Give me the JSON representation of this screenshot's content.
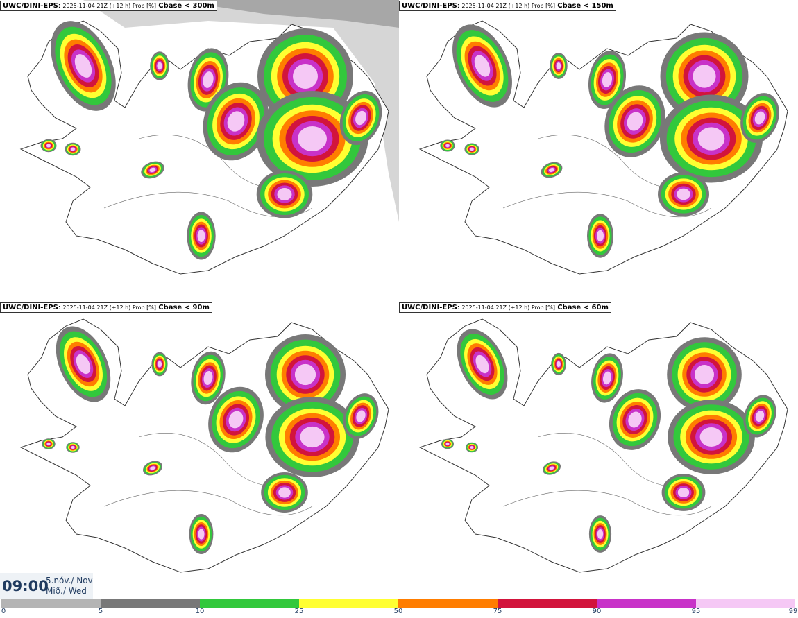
{
  "panels": [
    {
      "model": "UWC/DINI-EPS",
      "meta": "2025-11-04 21Z (+12 h) Prob [%]",
      "param": "Cbase < 300m"
    },
    {
      "model": "UWC/DINI-EPS",
      "meta": "2025-11-04 21Z (+12 h) Prob [%]",
      "param": "Cbase < 150m"
    },
    {
      "model": "UWC/DINI-EPS",
      "meta": "2025-11-04 21Z (+12 h) Prob [%]",
      "param": "Cbase < 90m"
    },
    {
      "model": "UWC/DINI-EPS",
      "meta": "2025-11-04 21Z (+12 h) Prob [%]",
      "param": "Cbase < 60m"
    }
  ],
  "time": {
    "clock": "09:00",
    "date_line": "5.nóv./ Nov",
    "day_line": "Mið./ Wed"
  },
  "legend": {
    "ticks": [
      "0",
      "5",
      "10",
      "25",
      "50",
      "75",
      "90",
      "95",
      "99"
    ],
    "colors": [
      "#ffffff",
      "#b4b4b4",
      "#787878",
      "#32c83c",
      "#ffff32",
      "#ff7d00",
      "#d2143c",
      "#c832c8",
      "#f5c8f5"
    ]
  }
}
